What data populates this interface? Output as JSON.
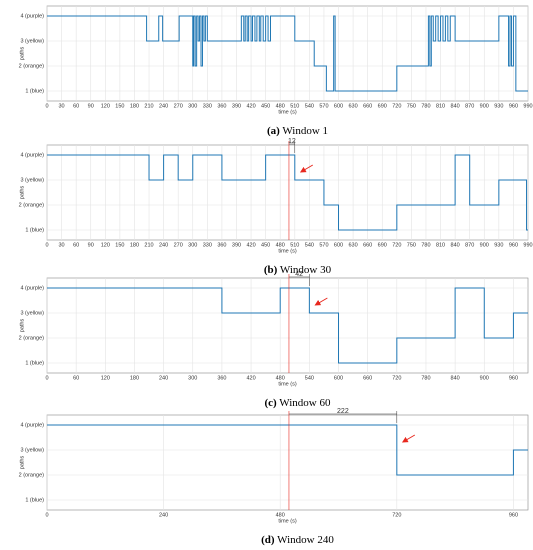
{
  "chart_data": [
    {
      "type": "step",
      "caption_tag": "(a)",
      "caption": "Window 1",
      "xlabel": "time (s)",
      "ylabel": "paths",
      "color": "#1f77b4",
      "x": [
        0,
        205,
        230,
        238,
        272,
        300,
        302,
        305,
        308,
        311,
        314,
        317,
        320,
        323,
        326,
        330,
        400,
        405,
        408,
        412,
        415,
        420,
        423,
        428,
        432,
        437,
        440,
        445,
        450,
        455,
        460,
        510,
        550,
        575,
        590,
        593,
        720,
        785,
        788,
        791,
        795,
        800,
        805,
        810,
        815,
        820,
        825,
        830,
        840,
        930,
        950,
        953,
        956,
        960,
        965,
        990
      ],
      "values": [
        4,
        3,
        4,
        3,
        4,
        2,
        4,
        2,
        4,
        3,
        4,
        2,
        4,
        3,
        4,
        3,
        4,
        3,
        4,
        3,
        4,
        3,
        4,
        3,
        4,
        3,
        4,
        3,
        4,
        3,
        4,
        3,
        2,
        1,
        4,
        1,
        2,
        4,
        2,
        4,
        3,
        4,
        3,
        4,
        3,
        4,
        3,
        4,
        3,
        4,
        2,
        4,
        2,
        4,
        1,
        1
      ],
      "xlim": [
        0,
        990
      ],
      "xticks": [
        0,
        30,
        60,
        90,
        120,
        150,
        180,
        210,
        240,
        270,
        300,
        330,
        360,
        390,
        420,
        450,
        480,
        510,
        540,
        570,
        600,
        630,
        660,
        690,
        720,
        750,
        780,
        810,
        840,
        870,
        900,
        930,
        960,
        990
      ],
      "ylim": [
        0.6,
        4.4
      ],
      "yticks": [
        {
          "value": 1,
          "label": "1 (blue)"
        },
        {
          "value": 2,
          "label": "2 (orange)"
        },
        {
          "value": 3,
          "label": "3 (yellow)"
        },
        {
          "value": 4,
          "label": "4 (purple)"
        }
      ],
      "grid": true
    },
    {
      "type": "step",
      "caption_tag": "(b)",
      "caption": "Window 30",
      "xlabel": "time (s)",
      "ylabel": "paths",
      "color": "#1f77b4",
      "x": [
        0,
        210,
        240,
        270,
        300,
        360,
        450,
        510,
        570,
        600,
        720,
        840,
        870,
        930,
        987,
        990
      ],
      "values": [
        4,
        3,
        4,
        3,
        4,
        3,
        4,
        3,
        2,
        1,
        2,
        4,
        2,
        3,
        1,
        1
      ],
      "annotation": {
        "label": "12",
        "x1": 498,
        "x2": 510
      },
      "xlim": [
        0,
        990
      ],
      "xticks": [
        0,
        30,
        60,
        90,
        120,
        150,
        180,
        210,
        240,
        270,
        300,
        330,
        360,
        390,
        420,
        450,
        480,
        510,
        540,
        570,
        600,
        630,
        660,
        690,
        720,
        750,
        780,
        810,
        840,
        870,
        900,
        930,
        960,
        990
      ],
      "ylim": [
        0.6,
        4.4
      ],
      "yticks": [
        {
          "value": 1,
          "label": "1 (blue)"
        },
        {
          "value": 2,
          "label": "2 (orange)"
        },
        {
          "value": 3,
          "label": "3 (yellow)"
        },
        {
          "value": 4,
          "label": "4 (purple)"
        }
      ],
      "grid": true
    },
    {
      "type": "step",
      "caption_tag": "(c)",
      "caption": "Window 60",
      "xlabel": "time (s)",
      "ylabel": "paths",
      "color": "#1f77b4",
      "x": [
        0,
        360,
        480,
        540,
        600,
        720,
        840,
        900,
        960,
        990
      ],
      "values": [
        4,
        3,
        4,
        3,
        1,
        2,
        4,
        2,
        3,
        3
      ],
      "annotation": {
        "label": "42",
        "x1": 498,
        "x2": 540
      },
      "xlim": [
        0,
        990
      ],
      "xticks": [
        0,
        60,
        120,
        180,
        240,
        300,
        360,
        420,
        480,
        540,
        600,
        660,
        720,
        780,
        840,
        900,
        960
      ],
      "ylim": [
        0.6,
        4.4
      ],
      "yticks": [
        {
          "value": 1,
          "label": "1 (blue)"
        },
        {
          "value": 2,
          "label": "2 (orange)"
        },
        {
          "value": 3,
          "label": "3 (yellow)"
        },
        {
          "value": 4,
          "label": "4 (purple)"
        }
      ],
      "grid": true
    },
    {
      "type": "step",
      "caption_tag": "(d)",
      "caption": "Window 240",
      "xlabel": "time (s)",
      "ylabel": "paths",
      "color": "#1f77b4",
      "x": [
        0,
        720,
        960,
        990
      ],
      "values": [
        4,
        2,
        3,
        3
      ],
      "annotation": {
        "label": "222",
        "x1": 498,
        "x2": 720
      },
      "xlim": [
        0,
        990
      ],
      "xticks": [
        0,
        240,
        480,
        720,
        960
      ],
      "ylim": [
        0.6,
        4.4
      ],
      "yticks": [
        {
          "value": 1,
          "label": "1 (blue)"
        },
        {
          "value": 2,
          "label": "2 (orange)"
        },
        {
          "value": 3,
          "label": "3 (yellow)"
        },
        {
          "value": 4,
          "label": "4 (purple)"
        }
      ],
      "grid": true
    }
  ]
}
